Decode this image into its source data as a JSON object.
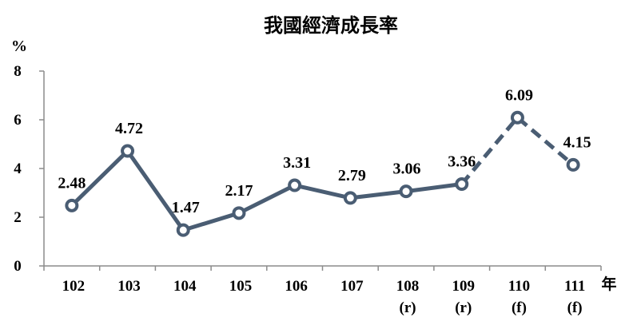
{
  "chart_data": {
    "type": "line",
    "title": "我國經濟成長率",
    "ylabel": "%",
    "xlabel": "年",
    "ylim": [
      0,
      8
    ],
    "yticks": [
      "0",
      "2",
      "4",
      "6",
      "8"
    ],
    "categories": [
      "102",
      "103",
      "104",
      "105",
      "106",
      "107",
      "108",
      "109",
      "110",
      "111"
    ],
    "category_notes": [
      "",
      "",
      "",
      "",
      "",
      "",
      "(r)",
      "(r)",
      "(f)",
      "(f)"
    ],
    "values": [
      2.48,
      4.72,
      1.47,
      2.17,
      3.31,
      2.79,
      3.06,
      3.36,
      6.09,
      4.15
    ],
    "value_labels": [
      "2.48",
      "4.72",
      "1.47",
      "2.17",
      "3.31",
      "2.79",
      "3.06",
      "3.36",
      "6.09",
      "4.15"
    ],
    "dashed_from_index": 7,
    "grid": false,
    "legend": "none",
    "colors": {
      "line": "#4a5d73",
      "marker_fill": "#ffffff",
      "axis": "#8c8c8c"
    }
  }
}
